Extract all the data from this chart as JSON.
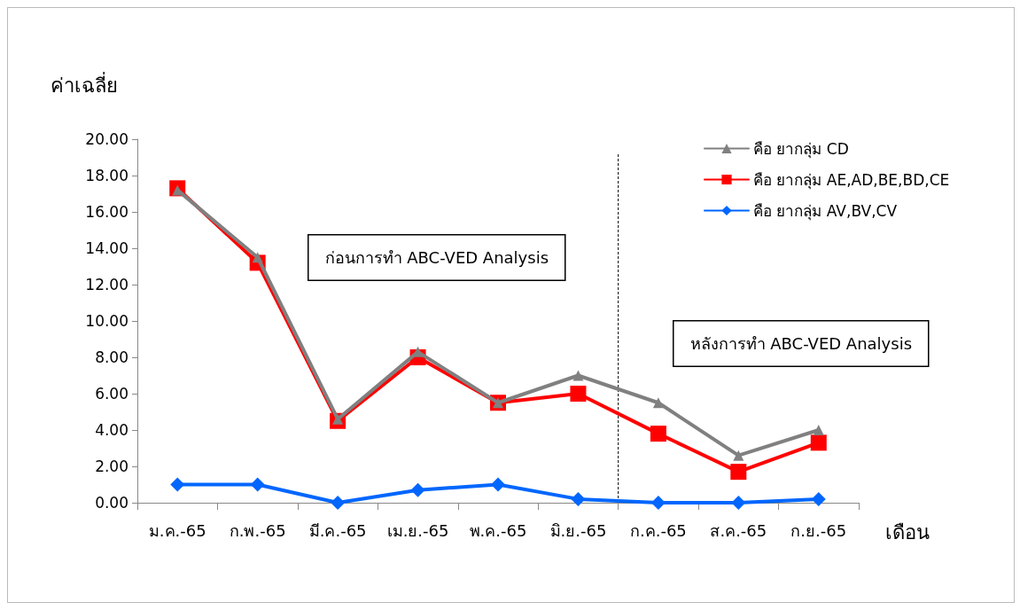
{
  "chart_data": {
    "type": "line",
    "ylabel": "ค่าเฉลี่ย",
    "xlabel": "เดือน",
    "categories": [
      "ม.ค.-65",
      "ก.พ.-65",
      "มี.ค.-65",
      "เม.ย.-65",
      "พ.ค.-65",
      "มิ.ย.-65",
      "ก.ค.-65",
      "ส.ค.-65",
      "ก.ย.-65"
    ],
    "series": [
      {
        "name": "คือ ยากลุ่ม CD",
        "color": "#808080",
        "marker": "triangle",
        "values": [
          17.2,
          13.5,
          4.6,
          8.3,
          5.5,
          7.0,
          5.5,
          2.6,
          4.0
        ]
      },
      {
        "name": "คือ ยากลุ่ม AE,AD,BE,BD,CE",
        "color": "#ff0000",
        "marker": "square",
        "values": [
          17.3,
          13.2,
          4.5,
          8.0,
          5.5,
          6.0,
          3.8,
          1.7,
          3.3
        ]
      },
      {
        "name": "คือ ยากลุ่ม AV,BV,CV",
        "color": "#0066ff",
        "marker": "diamond",
        "values": [
          1.0,
          1.0,
          0,
          0.7,
          1.0,
          0.2,
          0,
          0,
          0.2
        ]
      }
    ],
    "ylim": [
      0,
      20
    ],
    "yticks": [
      {
        "value": 0,
        "label": "0.00"
      },
      {
        "value": 2,
        "label": "2.00"
      },
      {
        "value": 4,
        "label": "4.00"
      },
      {
        "value": 6,
        "label": "6.00"
      },
      {
        "value": 8,
        "label": "8.00"
      },
      {
        "value": 10,
        "label": "10.00"
      },
      {
        "value": 12,
        "label": "12.00"
      },
      {
        "value": 14,
        "label": "14.00"
      },
      {
        "value": 16,
        "label": "16.00"
      },
      {
        "value": 18,
        "label": "18.00"
      },
      {
        "value": 20,
        "label": "20.00"
      }
    ],
    "annotations": [
      "ก่อนการทำ ABC-VED Analysis",
      "หลังการทำ ABC-VED Analysis"
    ],
    "grid": false,
    "legend": "top right"
  }
}
